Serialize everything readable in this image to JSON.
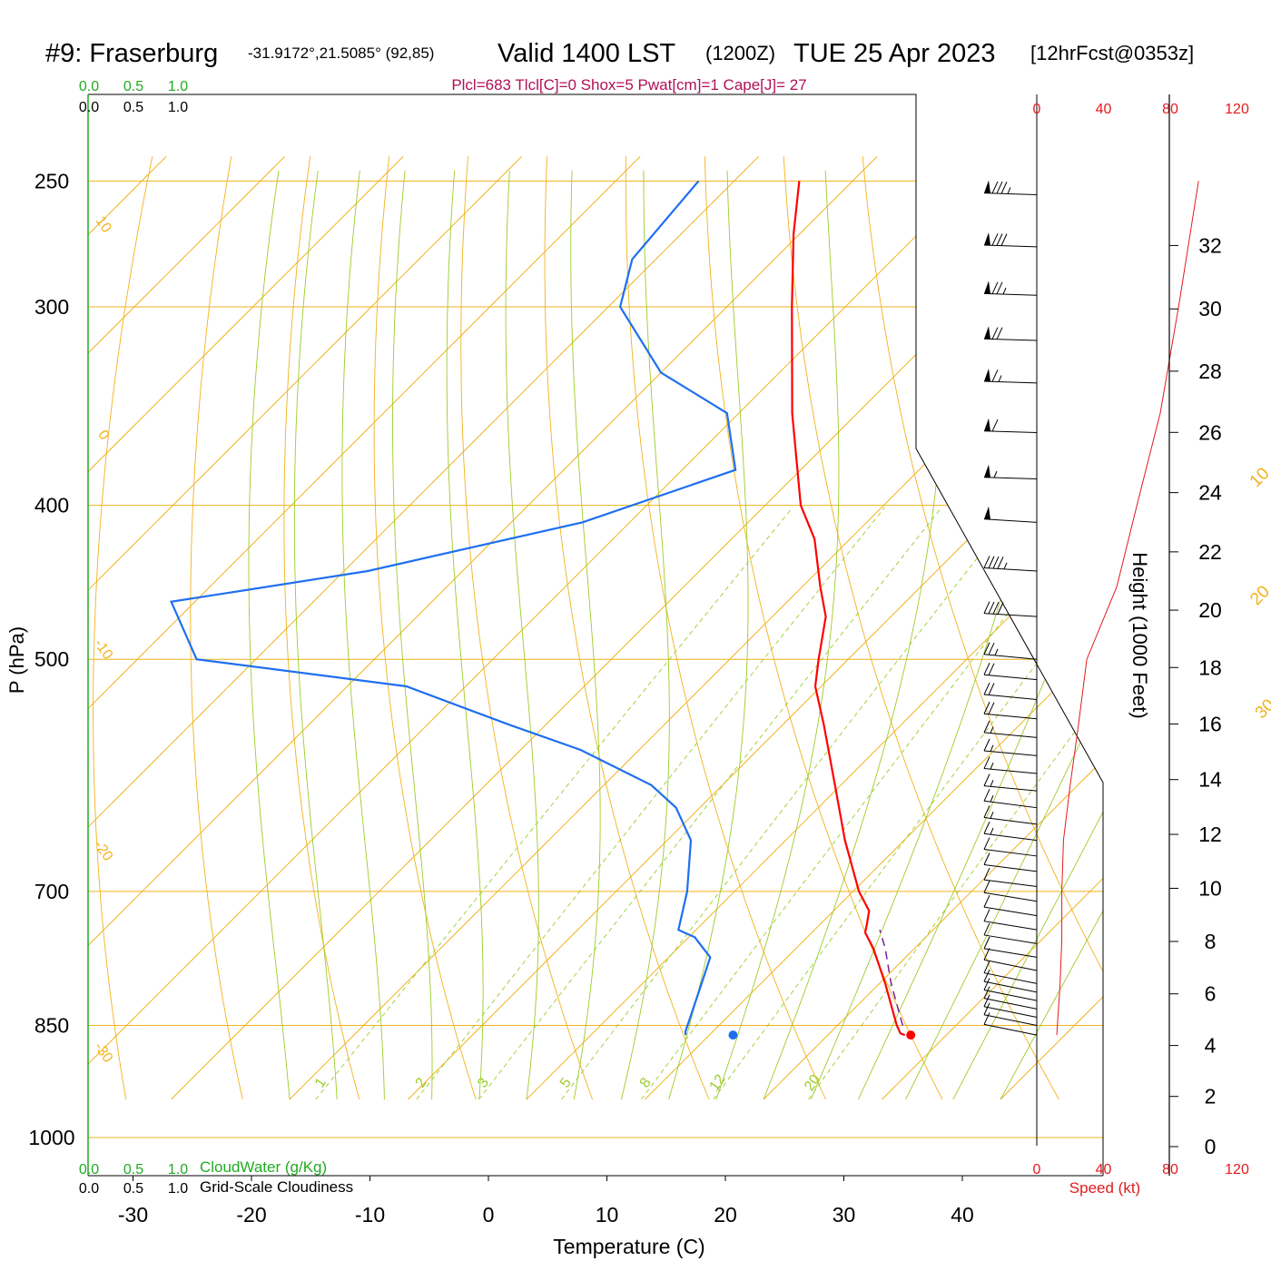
{
  "header": {
    "station": "#9: Fraserburg",
    "coords": "-31.9172°,21.5085° (92,85)",
    "valid": "Valid 1400 LST",
    "zulu": "(1200Z)",
    "date": "TUE 25 Apr 2023",
    "forecast": "[12hrFcst@0353z]",
    "params": "Plcl=683 Tlcl[C]=0 Shox=5 Pwat[cm]=1 Cape[J]= 27"
  },
  "colors": {
    "temperature": "#ff0000",
    "dewpoint": "#1e6ff0",
    "parcel": "#7a1fa0",
    "isotherm": "#f2b21c",
    "dry_adiabat": "#f2b21c",
    "moist_adiabat": "#9ccc2a",
    "mixing_ratio": "#9ccc2a",
    "cloud": "#22aa22",
    "params": "#b0105a",
    "wind_speed": "#e31a1c"
  },
  "chart_data": {
    "type": "skew-t",
    "xlabel": "Temperature (C)",
    "ylabel": "P (hPa)",
    "x_ticks": [
      -30,
      -20,
      -10,
      0,
      10,
      20,
      30,
      40
    ],
    "p_ticks": [
      250,
      300,
      400,
      500,
      700,
      850,
      1000
    ],
    "height_label": "Height (1000 Feet)",
    "height_ticks": [
      0,
      2,
      4,
      6,
      8,
      10,
      12,
      14,
      16,
      18,
      20,
      22,
      24,
      26,
      28,
      30,
      32
    ],
    "isotherm_labels": [
      "30",
      "20",
      "10",
      "0",
      "-10",
      "-20",
      "-30"
    ],
    "isotherm_label_values": [
      30,
      20,
      10,
      0,
      -10,
      -20,
      -30
    ],
    "isohume_labels": [
      "1",
      "2",
      "3",
      "5",
      "8",
      "12",
      "20"
    ],
    "isohume_values": [
      1,
      2,
      3,
      5,
      8,
      12,
      20
    ],
    "cloud_water_top": [
      "0.0",
      "0.5",
      "1.0"
    ],
    "cloudiness_top": [
      "0.0",
      "0.5",
      "1.0"
    ],
    "cloud_water_bottom": [
      "0.0",
      "0.5",
      "1.0"
    ],
    "cloudiness_bottom": [
      "0.0",
      "0.5",
      "1.0"
    ],
    "cloud_water_label": "CloudWater (g/Kg)",
    "cloudiness_label": "Grid-Scale Cloudiness",
    "wind_speed_ticks": [
      "0",
      "40",
      "80",
      "120"
    ],
    "wind_speed_label": "Speed (kt)",
    "temperature_profile": [
      {
        "p": 862,
        "t": 26.5
      },
      {
        "p": 860,
        "t": 26.0
      },
      {
        "p": 850,
        "t": 25.0
      },
      {
        "p": 800,
        "t": 20.5
      },
      {
        "p": 760,
        "t": 16.5
      },
      {
        "p": 743,
        "t": 14.5
      },
      {
        "p": 735,
        "t": 14.0
      },
      {
        "p": 720,
        "t": 13.0
      },
      {
        "p": 700,
        "t": 10.5
      },
      {
        "p": 650,
        "t": 5.0
      },
      {
        "p": 600,
        "t": -0.5
      },
      {
        "p": 550,
        "t": -6.5
      },
      {
        "p": 520,
        "t": -10.5
      },
      {
        "p": 500,
        "t": -12.5
      },
      {
        "p": 470,
        "t": -15.5
      },
      {
        "p": 450,
        "t": -18.5
      },
      {
        "p": 420,
        "t": -23.0
      },
      {
        "p": 400,
        "t": -27.0
      },
      {
        "p": 350,
        "t": -35.5
      },
      {
        "p": 300,
        "t": -44.5
      },
      {
        "p": 270,
        "t": -50.5
      },
      {
        "p": 250,
        "t": -54.5
      }
    ],
    "dewpoint_profile": [
      {
        "p": 862,
        "t": 8.0
      },
      {
        "p": 858,
        "t": 7.7
      },
      {
        "p": 800,
        "t": 5.0
      },
      {
        "p": 770,
        "t": 3.5
      },
      {
        "p": 748,
        "t": 0.5
      },
      {
        "p": 740,
        "t": -1.5
      },
      {
        "p": 700,
        "t": -4.0
      },
      {
        "p": 650,
        "t": -8.0
      },
      {
        "p": 620,
        "t": -12.0
      },
      {
        "p": 600,
        "t": -16.0
      },
      {
        "p": 570,
        "t": -25.0
      },
      {
        "p": 550,
        "t": -33.0
      },
      {
        "p": 520,
        "t": -45.0
      },
      {
        "p": 500,
        "t": -65.0
      },
      {
        "p": 460,
        "t": -72.0
      },
      {
        "p": 440,
        "t": -58.0
      },
      {
        "p": 410,
        "t": -44.0
      },
      {
        "p": 380,
        "t": -35.5
      },
      {
        "p": 350,
        "t": -41.0
      },
      {
        "p": 330,
        "t": -50.0
      },
      {
        "p": 300,
        "t": -59.0
      },
      {
        "p": 280,
        "t": -62.0
      },
      {
        "p": 250,
        "t": -63.0
      }
    ],
    "parcel_path": [
      {
        "p": 850,
        "t": 25.5
      },
      {
        "p": 800,
        "t": 21.0
      },
      {
        "p": 760,
        "t": 17.5
      },
      {
        "p": 740,
        "t": 15.5
      }
    ],
    "surface_temperature": {
      "p": 862,
      "t": 27.0
    },
    "surface_dewpoint": {
      "p": 862,
      "t": 12.0
    },
    "wind_profile": [
      {
        "p": 862,
        "speed": 12
      },
      {
        "p": 800,
        "speed": 14
      },
      {
        "p": 750,
        "speed": 15
      },
      {
        "p": 700,
        "speed": 15
      },
      {
        "p": 650,
        "speed": 16
      },
      {
        "p": 600,
        "speed": 20
      },
      {
        "p": 550,
        "speed": 25
      },
      {
        "p": 500,
        "speed": 30
      },
      {
        "p": 450,
        "speed": 48
      },
      {
        "p": 400,
        "speed": 60
      },
      {
        "p": 350,
        "speed": 74
      },
      {
        "p": 300,
        "speed": 85
      },
      {
        "p": 250,
        "speed": 97
      }
    ],
    "wind_barbs": [
      {
        "p": 862,
        "dir": 300,
        "speed": 12
      },
      {
        "p": 850,
        "dir": 300,
        "speed": 12
      },
      {
        "p": 840,
        "dir": 300,
        "speed": 12
      },
      {
        "p": 830,
        "dir": 300,
        "speed": 12
      },
      {
        "p": 820,
        "dir": 300,
        "speed": 12
      },
      {
        "p": 810,
        "dir": 300,
        "speed": 13
      },
      {
        "p": 800,
        "dir": 300,
        "speed": 13
      },
      {
        "p": 785,
        "dir": 300,
        "speed": 13
      },
      {
        "p": 770,
        "dir": 295,
        "speed": 14
      },
      {
        "p": 755,
        "dir": 295,
        "speed": 14
      },
      {
        "p": 740,
        "dir": 295,
        "speed": 14
      },
      {
        "p": 725,
        "dir": 295,
        "speed": 14
      },
      {
        "p": 710,
        "dir": 295,
        "speed": 14
      },
      {
        "p": 695,
        "dir": 290,
        "speed": 14
      },
      {
        "p": 680,
        "dir": 290,
        "speed": 14
      },
      {
        "p": 665,
        "dir": 290,
        "speed": 14
      },
      {
        "p": 650,
        "dir": 290,
        "speed": 15
      },
      {
        "p": 635,
        "dir": 290,
        "speed": 15
      },
      {
        "p": 620,
        "dir": 290,
        "speed": 15
      },
      {
        "p": 605,
        "dir": 285,
        "speed": 16
      },
      {
        "p": 590,
        "dir": 285,
        "speed": 17
      },
      {
        "p": 575,
        "dir": 285,
        "speed": 18
      },
      {
        "p": 560,
        "dir": 285,
        "speed": 19
      },
      {
        "p": 545,
        "dir": 285,
        "speed": 20
      },
      {
        "p": 530,
        "dir": 285,
        "speed": 22
      },
      {
        "p": 515,
        "dir": 285,
        "speed": 24
      },
      {
        "p": 500,
        "dir": 285,
        "speed": 25
      },
      {
        "p": 470,
        "dir": 280,
        "speed": 40
      },
      {
        "p": 440,
        "dir": 280,
        "speed": 45
      },
      {
        "p": 410,
        "dir": 280,
        "speed": 50
      },
      {
        "p": 385,
        "dir": 275,
        "speed": 55
      },
      {
        "p": 360,
        "dir": 275,
        "speed": 60
      },
      {
        "p": 335,
        "dir": 275,
        "speed": 65
      },
      {
        "p": 315,
        "dir": 275,
        "speed": 70
      },
      {
        "p": 295,
        "dir": 275,
        "speed": 75
      },
      {
        "p": 275,
        "dir": 275,
        "speed": 80
      },
      {
        "p": 255,
        "dir": 275,
        "speed": 85
      }
    ]
  }
}
